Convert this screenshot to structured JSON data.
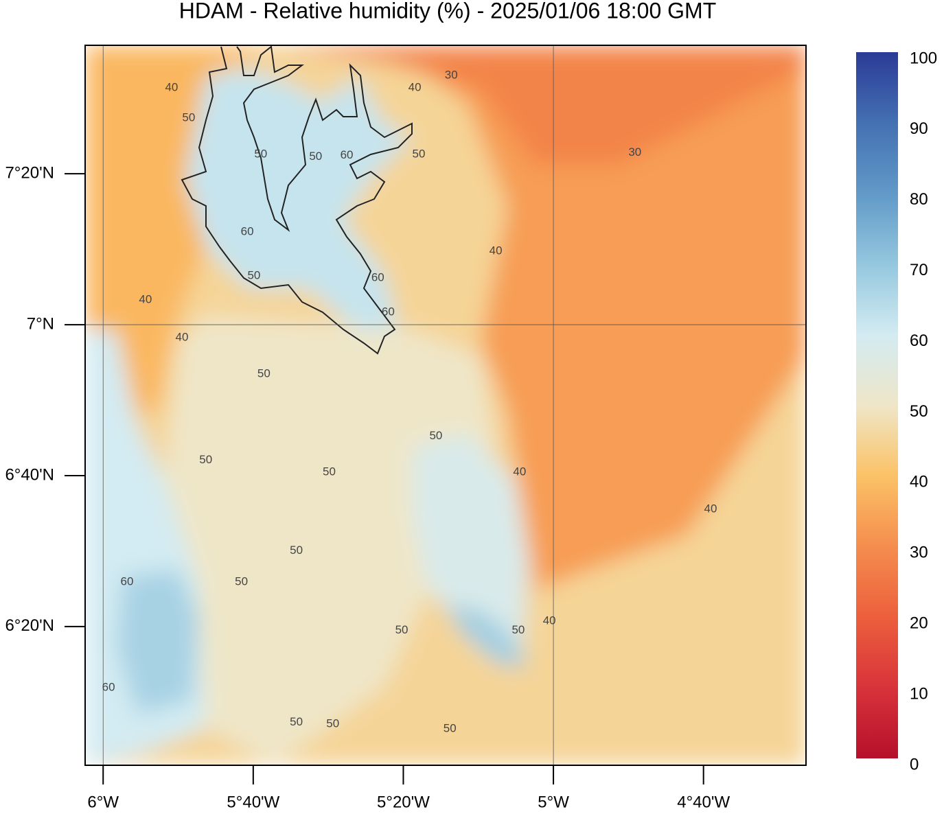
{
  "chart_data": {
    "type": "map",
    "title": "HDAM - Relative humidity (%)  -  2025/01/06  18:00 GMT",
    "xlim": [
      -6.04,
      -4.439
    ],
    "ylim": [
      6.027,
      7.617
    ],
    "xticks": [
      {
        "value": -6,
        "label": "6°W"
      },
      {
        "value": -5.66667,
        "label": "5°40'W"
      },
      {
        "value": -5.33333,
        "label": "5°20'W"
      },
      {
        "value": -5,
        "label": "5°W"
      },
      {
        "value": -4.66667,
        "label": "4°40'W"
      }
    ],
    "yticks": [
      {
        "value": 7.33333,
        "label": "7°20'N"
      },
      {
        "value": 7,
        "label": "7°N"
      },
      {
        "value": 6.66667,
        "label": "6°40'N"
      },
      {
        "value": 6.33333,
        "label": "6°20'N"
      }
    ],
    "colormap": [
      [
        0,
        "#b5102b"
      ],
      [
        10,
        "#d8333a"
      ],
      [
        20,
        "#ec5f3c"
      ],
      [
        30,
        "#f58d4e"
      ],
      [
        40,
        "#fbc266"
      ],
      [
        50,
        "#efe6c8"
      ],
      [
        60,
        "#d3ebf2"
      ],
      [
        70,
        "#94c7de"
      ],
      [
        80,
        "#6199c8"
      ],
      [
        90,
        "#4470b2"
      ],
      [
        100,
        "#2b3b97"
      ]
    ],
    "colorbar": {
      "lim": [
        0,
        100
      ],
      "ticks": [
        0,
        10,
        20,
        30,
        40,
        50,
        60,
        70,
        80,
        90,
        100
      ]
    },
    "regions": [
      {
        "value": 45,
        "lon": [
          -6.04,
          -4.439,
          -4.439,
          -6.04
        ],
        "lat": [
          7.617,
          7.617,
          6.027,
          6.027
        ]
      },
      {
        "value": 38,
        "lon": [
          -6.04,
          -5.619,
          -5.772,
          -5.817,
          -5.772,
          -5.833,
          -5.878,
          -5.955,
          -6.04
        ],
        "lat": [
          7.617,
          7.617,
          7.55,
          7.323,
          7.171,
          7.02,
          6.807,
          6.807,
          6.959
        ]
      },
      {
        "value": 50,
        "lon": [
          -5.772,
          -5.314,
          -5.162,
          -5.131,
          -5.375,
          -5.619,
          -5.772,
          -5.787,
          -5.863,
          -5.833
        ],
        "lat": [
          7.02,
          6.989,
          6.929,
          6.732,
          6.201,
          6.027,
          6.11,
          6.428,
          6.656,
          6.959
        ]
      },
      {
        "value": 33,
        "lon": [
          -5.375,
          -4.439,
          -4.439,
          -4.704,
          -4.918,
          -5.04,
          -5.101,
          -5.162,
          -5.101,
          -5.192
        ],
        "lat": [
          7.617,
          7.617,
          6.929,
          6.535,
          6.459,
          6.413,
          6.807,
          6.959,
          7.262,
          7.49
        ]
      },
      {
        "value": 28,
        "lon": [
          -5.619,
          -4.439,
          -4.439,
          -4.857,
          -5.04,
          -5.162,
          -5.375
        ],
        "lat": [
          7.617,
          7.617,
          7.565,
          7.353,
          7.353,
          7.52,
          7.581
        ]
      },
      {
        "value": 60,
        "lon": [
          -6.04,
          -5.97,
          -5.924,
          -5.863,
          -5.787,
          -5.772,
          -5.924,
          -6.04
        ],
        "lat": [
          6.989,
          6.989,
          6.777,
          6.656,
          6.428,
          6.11,
          6.049,
          6.027
        ]
      },
      {
        "value": 67,
        "lon": [
          -5.955,
          -5.833,
          -5.787,
          -5.802,
          -5.924,
          -5.97
        ],
        "lat": [
          6.444,
          6.459,
          6.353,
          6.171,
          6.14,
          6.292
        ]
      },
      {
        "value": 58,
        "lon": [
          -5.314,
          -5.192,
          -5.085,
          -5.055,
          -5.07,
          -5.162,
          -5.284,
          -5.314
        ],
        "lat": [
          6.732,
          6.762,
          6.656,
          6.474,
          6.261,
          6.277,
          6.428,
          6.58
        ]
      },
      {
        "value": 68,
        "lon": [
          -5.238,
          -5.162,
          -5.101,
          -5.055,
          -5.116,
          -5.207
        ],
        "lat": [
          6.383,
          6.368,
          6.322,
          6.246,
          6.246,
          6.322
        ]
      },
      {
        "value": 62,
        "lon": [
          -5.772,
          -5.68,
          -5.589,
          -5.512,
          -5.436,
          -5.375,
          -5.314,
          -5.406,
          -5.467,
          -5.375,
          -5.345,
          -5.436,
          -5.543,
          -5.68,
          -5.772,
          -5.817
        ],
        "lat": [
          7.55,
          7.565,
          7.535,
          7.49,
          7.55,
          7.444,
          7.414,
          7.323,
          7.232,
          7.111,
          6.989,
          6.989,
          7.08,
          7.08,
          7.171,
          7.323
        ]
      }
    ],
    "contour_labels": [
      {
        "value": 30,
        "lon": -5.227,
        "lat": 7.55
      },
      {
        "value": 30,
        "lon": -4.819,
        "lat": 7.38
      },
      {
        "value": 40,
        "lon": -5.848,
        "lat": 7.523
      },
      {
        "value": 40,
        "lon": -5.308,
        "lat": 7.523
      },
      {
        "value": 50,
        "lon": -5.81,
        "lat": 7.456
      },
      {
        "value": 50,
        "lon": -5.65,
        "lat": 7.376
      },
      {
        "value": 50,
        "lon": -5.528,
        "lat": 7.371
      },
      {
        "value": 60,
        "lon": -5.459,
        "lat": 7.374
      },
      {
        "value": 50,
        "lon": -5.299,
        "lat": 7.376
      },
      {
        "value": 60,
        "lon": -5.68,
        "lat": 7.205
      },
      {
        "value": 40,
        "lon": -5.128,
        "lat": 7.162
      },
      {
        "value": 50,
        "lon": -5.665,
        "lat": 7.108
      },
      {
        "value": 60,
        "lon": -5.39,
        "lat": 7.103
      },
      {
        "value": 60,
        "lon": -5.367,
        "lat": 7.027
      },
      {
        "value": 40,
        "lon": -5.906,
        "lat": 7.055
      },
      {
        "value": 40,
        "lon": -5.825,
        "lat": 6.971
      },
      {
        "value": 50,
        "lon": -5.643,
        "lat": 6.891
      },
      {
        "value": 50,
        "lon": -5.261,
        "lat": 6.754
      },
      {
        "value": 50,
        "lon": -5.772,
        "lat": 6.701
      },
      {
        "value": 50,
        "lon": -5.498,
        "lat": 6.674
      },
      {
        "value": 40,
        "lon": -5.075,
        "lat": 6.674
      },
      {
        "value": 40,
        "lon": -4.651,
        "lat": 6.592
      },
      {
        "value": 50,
        "lon": -5.571,
        "lat": 6.501
      },
      {
        "value": 60,
        "lon": -5.947,
        "lat": 6.432
      },
      {
        "value": 50,
        "lon": -5.693,
        "lat": 6.432
      },
      {
        "value": 40,
        "lon": -5.009,
        "lat": 6.345
      },
      {
        "value": 50,
        "lon": -5.337,
        "lat": 6.325
      },
      {
        "value": 50,
        "lon": -5.078,
        "lat": 6.325
      },
      {
        "value": 60,
        "lon": -5.988,
        "lat": 6.198
      },
      {
        "value": 50,
        "lon": -5.571,
        "lat": 6.122
      },
      {
        "value": 50,
        "lon": -5.49,
        "lat": 6.118
      },
      {
        "value": 50,
        "lon": -5.23,
        "lat": 6.107
      }
    ]
  }
}
